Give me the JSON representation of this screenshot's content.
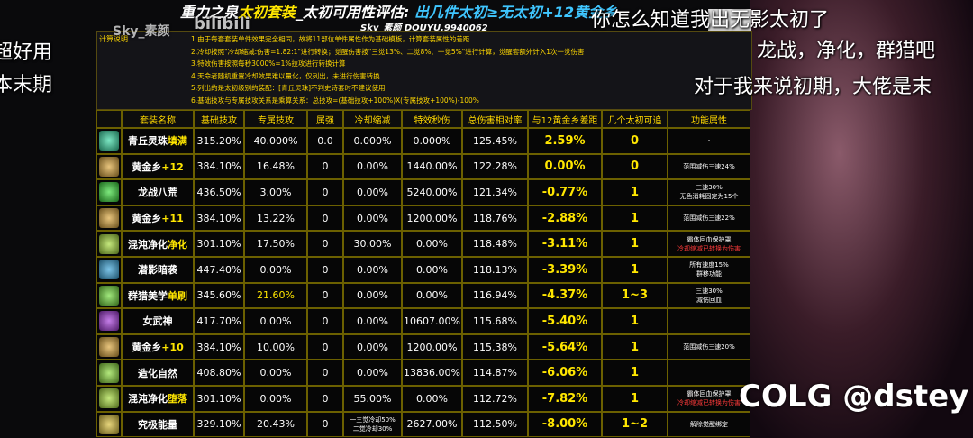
{
  "title": [
    "重力之泉",
    "太初套装",
    "_太初可用性评估: ",
    "出几件太初≥无太初+12黄金乡"
  ],
  "author": "Sky_素颜 DOUYU.9940062",
  "notes_label": "计算说明",
  "notes": [
    "1.由于每套套装单件效果完全相同，故将11部位单件属性作为基础模板，计算套装属性的差距",
    "2.冷却按照\"冷却缩减:伤害=1.82:1\"进行转换；觉醒伤害按\"三觉13%、二觉8%、一觉5%\"进行计算，觉醒套额外计入1次一觉伤害",
    "3.特效伤害按照每秒3000%=1%技攻进行转换计算",
    "4.天命者随机重置冷却效果难以量化，仅列出，未进行伤害转换",
    "5.列出的是太初级别的装配：[青丘灵珠]不判史诗套时不建议使用",
    "6.基础技攻与专属技攻关系是乘算关系：总技攻=(基础技攻+100%)X(专属技攻+100%)-100%"
  ],
  "table": {
    "headers": [
      "套装名称",
      "基础技攻",
      "专属技攻",
      "属强",
      "冷却缩减",
      "特效秒伤",
      "总伤害相对率",
      "与12黄金乡差距",
      "几个太初可追",
      "功能属性"
    ],
    "rows": [
      {
        "name": "青丘灵珠",
        "tag": "填满",
        "cells": [
          "315.20%",
          "40.000%",
          "0.0",
          "0.000%",
          "0.000%",
          "125.45%",
          "2.59%",
          "0"
        ],
        "function": [
          "-"
        ]
      },
      {
        "name": "黄金乡",
        "tag": "+12",
        "cells": [
          "384.10%",
          "16.48%",
          "0",
          "0.00%",
          "1440.00%",
          "122.28%",
          "0.00%",
          "0"
        ],
        "function": [
          "范围减伤三速24%"
        ]
      },
      {
        "name": "龙战八荒",
        "tag": "",
        "cells": [
          "436.50%",
          "3.00%",
          "0",
          "0.00%",
          "5240.00%",
          "121.34%",
          "-0.77%",
          "1"
        ],
        "function": [
          "三速30%",
          "无色消耗固定为15个"
        ]
      },
      {
        "name": "黄金乡",
        "tag": "+11",
        "cells": [
          "384.10%",
          "13.22%",
          "0",
          "0.00%",
          "1200.00%",
          "118.76%",
          "-2.88%",
          "1"
        ],
        "function": [
          "范围减伤三速22%"
        ]
      },
      {
        "name": "混沌净化",
        "tag": "净化",
        "cells": [
          "301.10%",
          "17.50%",
          "0",
          "30.00%",
          "0.00%",
          "118.48%",
          "-3.11%",
          "1"
        ],
        "function": [
          "霸体回血保护罩",
          "冷却缩减已转换为伤害"
        ]
      },
      {
        "name": "潜影暗袭",
        "tag": "",
        "cells": [
          "447.40%",
          "0.00%",
          "0",
          "0.00%",
          "0.00%",
          "118.13%",
          "-3.39%",
          "1"
        ],
        "function": [
          "所有速度15%",
          "群移功能"
        ]
      },
      {
        "name": "群猎美学",
        "tag": "单刷",
        "cells": [
          "345.60%",
          "21.60%",
          "0",
          "0.00%",
          "0.00%",
          "116.94%",
          "-4.37%",
          "1~3"
        ],
        "function": [
          "三速30%",
          "减伤回血"
        ]
      },
      {
        "name": "女武神",
        "tag": "",
        "cells": [
          "417.70%",
          "0.00%",
          "0",
          "0.00%",
          "10607.00%",
          "115.68%",
          "-5.40%",
          "1"
        ],
        "function": []
      },
      {
        "name": "黄金乡",
        "tag": "+10",
        "cells": [
          "384.10%",
          "10.00%",
          "0",
          "0.00%",
          "1200.00%",
          "115.38%",
          "-5.64%",
          "1"
        ],
        "function": [
          "范围减伤三速20%"
        ]
      },
      {
        "name": "造化自然",
        "tag": "",
        "cells": [
          "408.80%",
          "0.00%",
          "0",
          "0.00%",
          "13836.00%",
          "114.87%",
          "-6.06%",
          "1"
        ],
        "function": []
      },
      {
        "name": "混沌净化",
        "tag": "堕落",
        "cells": [
          "301.10%",
          "0.00%",
          "0",
          "55.00%",
          "0.00%",
          "112.72%",
          "-7.82%",
          "1"
        ],
        "function": [
          "霸体回血保护罩",
          "冷却缩减已转换为伤害"
        ]
      },
      {
        "name": "究极能量",
        "tag": "",
        "cells": [
          "329.10%",
          "20.43%",
          "0",
          [
            "一三觉冷却50%",
            "二觉冷却30%"
          ],
          "2627.00%",
          "112.50%",
          "-8.00%",
          "1~2"
        ],
        "function": [
          "解除觉醒绑定"
        ]
      }
    ]
  },
  "danmaku": [
    "你怎么知道我出无影太初了",
    "龙战，净化，群猎吧",
    "对于我来说初期，大佬是末",
    "超好用",
    "本末期"
  ],
  "watermarks": [
    "Sky_素颜",
    "bilibili",
    "COLG @dstey"
  ]
}
